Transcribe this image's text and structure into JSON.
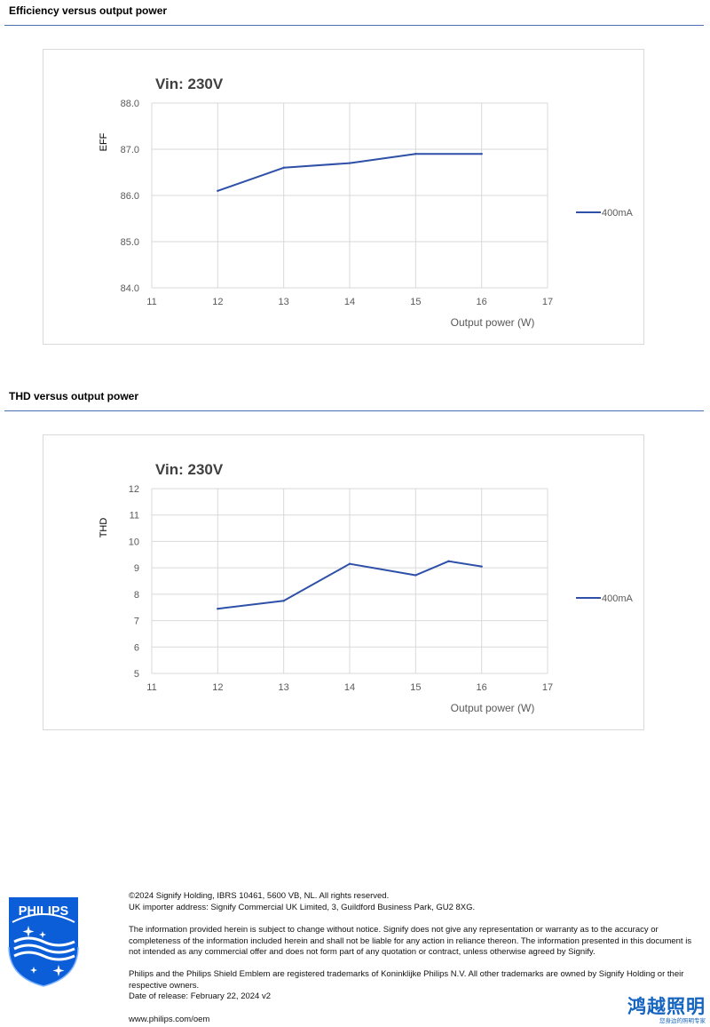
{
  "sections": [
    {
      "title": "Efficiency versus output power",
      "chart_data": {
        "type": "line",
        "title": "Vin: 230V",
        "ylabel": "EFF",
        "xlabel": "Output power (W)",
        "xlim": [
          11,
          17
        ],
        "ylim": [
          84.0,
          88.0
        ],
        "xticks": [
          "11",
          "12",
          "13",
          "14",
          "15",
          "16",
          "17"
        ],
        "yticks": [
          "84.0",
          "85.0",
          "86.0",
          "87.0",
          "88.0"
        ],
        "series": [
          {
            "name": "400mA",
            "color": "#2e50a8",
            "x": [
              12,
              13,
              14,
              15,
              16
            ],
            "y": [
              86.1,
              86.6,
              86.7,
              86.9,
              86.9
            ]
          }
        ],
        "legend": "right",
        "grid": true
      }
    },
    {
      "title": "THD versus output power",
      "chart_data": {
        "type": "line",
        "title": "Vin: 230V",
        "ylabel": "THD",
        "xlabel": "Output power (W)",
        "xlim": [
          11,
          17
        ],
        "ylim": [
          5,
          12
        ],
        "xticks": [
          "11",
          "12",
          "13",
          "14",
          "15",
          "16",
          "17"
        ],
        "yticks": [
          "5",
          "6",
          "7",
          "8",
          "9",
          "10",
          "11",
          "12"
        ],
        "series": [
          {
            "name": "400mA",
            "color": "#2e50a8",
            "x": [
              12,
              13,
              14,
              15,
              15.5,
              16
            ],
            "y": [
              7.45,
              7.75,
              9.15,
              8.72,
              9.25,
              9.05
            ]
          }
        ],
        "legend": "right",
        "grid": true
      }
    }
  ],
  "footer": {
    "copyright": "©2024 Signify Holding, IBRS 10461, 5600 VB, NL. All rights reserved.",
    "importer": "UK importer address: Signify Commercial UK Limited, 3, Guildford Business Park, GU2 8XG.",
    "disclaimer": "The information provided herein is subject to change without notice. Signify does not give any representation or warranty as to the accuracy or completeness of the information included herein and shall not be liable for any action in reliance thereon. The information presented in this document is not intended as any commercial offer and does not form part of any quotation or contract, unless otherwise agreed by Signify.",
    "trademarks": "Philips and the Philips Shield Emblem are registered trademarks of Koninklijke Philips N.V. All other trademarks are owned by Signify Holding or their respective owners.",
    "release": "Date of release: February 22, 2024 v2",
    "website": "www.philips.com/oem"
  },
  "logo": {
    "text": "PHILIPS",
    "color": "#0b5ed7"
  },
  "watermark": {
    "main": "鸿越照明",
    "sub": "您身边的照明专家"
  }
}
